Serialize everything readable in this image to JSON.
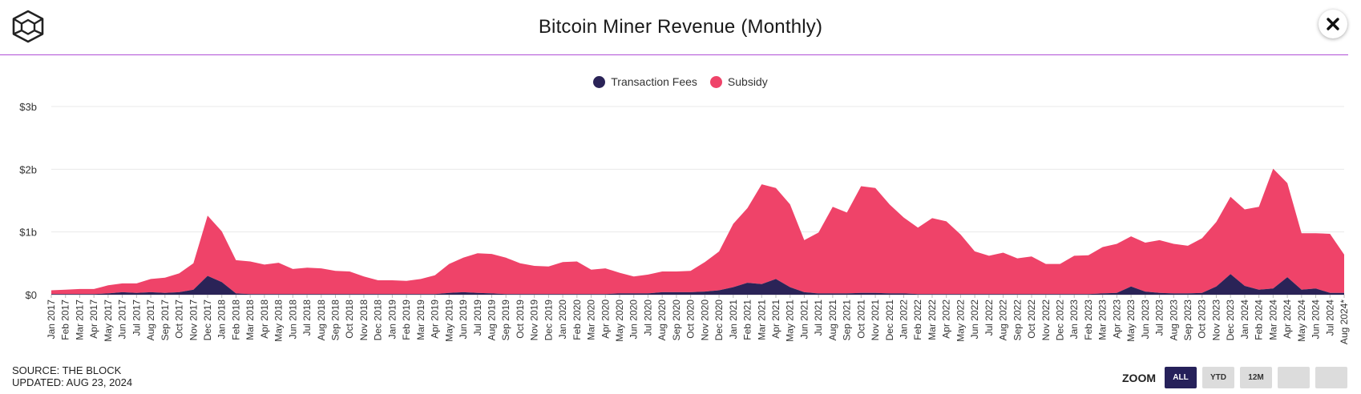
{
  "header": {
    "title": "Bitcoin Miner Revenue (Monthly)"
  },
  "icons": {
    "logo": "the-block-cube-logo",
    "close": "close-x-icon"
  },
  "colors": {
    "fees": "#2a2357",
    "subsidy": "#ef4369",
    "divider": "#b04fd6",
    "active_zoom": "#26215a"
  },
  "legend": {
    "fees_label": "Transaction Fees",
    "subsidy_label": "Subsidy"
  },
  "source": {
    "line1": "SOURCE: THE BLOCK",
    "line2": "UPDATED: AUG 23, 2024"
  },
  "zoom": {
    "label": "ZOOM",
    "buttons": [
      {
        "label": "ALL",
        "active": true
      },
      {
        "label": "YTD",
        "active": false
      },
      {
        "label": "12M",
        "active": false
      },
      {
        "label": "",
        "active": false
      },
      {
        "label": "",
        "active": false
      }
    ]
  },
  "chart_data": {
    "type": "area",
    "stacked": true,
    "yticks": [
      "$0",
      "$1b",
      "$2b",
      "$3b"
    ],
    "ylim": [
      0,
      3
    ],
    "y_unit": "billion USD",
    "grid": true,
    "legend_position": "top-center",
    "categories": [
      "Jan 2017",
      "Feb 2017",
      "Mar 2017",
      "Apr 2017",
      "May 2017",
      "Jun 2017",
      "Jul 2017",
      "Aug 2017",
      "Sep 2017",
      "Oct 2017",
      "Nov 2017",
      "Dec 2017",
      "Jan 2018",
      "Feb 2018",
      "Mar 2018",
      "Apr 2018",
      "May 2018",
      "Jun 2018",
      "Jul 2018",
      "Aug 2018",
      "Sep 2018",
      "Oct 2018",
      "Nov 2018",
      "Dec 2018",
      "Jan 2019",
      "Feb 2019",
      "Mar 2019",
      "Apr 2019",
      "May 2019",
      "Jun 2019",
      "Jul 2019",
      "Aug 2019",
      "Sep 2019",
      "Oct 2019",
      "Nov 2019",
      "Dec 2019",
      "Jan 2020",
      "Feb 2020",
      "Mar 2020",
      "Apr 2020",
      "May 2020",
      "Jun 2020",
      "Jul 2020",
      "Aug 2020",
      "Sep 2020",
      "Oct 2020",
      "Nov 2020",
      "Dec 2020",
      "Jan 2021",
      "Feb 2021",
      "Mar 2021",
      "Apr 2021",
      "May 2021",
      "Jun 2021",
      "Jul 2021",
      "Aug 2021",
      "Sep 2021",
      "Oct 2021",
      "Nov 2021",
      "Dec 2021",
      "Jan 2022",
      "Feb 2022",
      "Mar 2022",
      "Apr 2022",
      "May 2022",
      "Jun 2022",
      "Jul 2022",
      "Aug 2022",
      "Sep 2022",
      "Oct 2022",
      "Nov 2022",
      "Dec 2022",
      "Jan 2023",
      "Feb 2023",
      "Mar 2023",
      "Apr 2023",
      "May 2023",
      "Jun 2023",
      "Jul 2023",
      "Aug 2023",
      "Sep 2023",
      "Oct 2023",
      "Nov 2023",
      "Dec 2023",
      "Jan 2024",
      "Feb 2024",
      "Mar 2024",
      "Apr 2024",
      "May 2024",
      "Jun 2024",
      "Jul 2024",
      "Aug 2024*"
    ],
    "series": [
      {
        "name": "Transaction Fees",
        "values": [
          0.01,
          0.01,
          0.01,
          0.01,
          0.02,
          0.04,
          0.03,
          0.04,
          0.03,
          0.04,
          0.08,
          0.3,
          0.2,
          0.02,
          0.01,
          0.01,
          0.01,
          0.01,
          0.01,
          0.01,
          0.01,
          0.01,
          0.01,
          0.01,
          0.01,
          0.01,
          0.01,
          0.01,
          0.03,
          0.04,
          0.03,
          0.02,
          0.01,
          0.01,
          0.01,
          0.01,
          0.01,
          0.01,
          0.01,
          0.01,
          0.02,
          0.02,
          0.02,
          0.04,
          0.04,
          0.04,
          0.05,
          0.07,
          0.12,
          0.19,
          0.17,
          0.25,
          0.12,
          0.04,
          0.02,
          0.02,
          0.02,
          0.03,
          0.03,
          0.02,
          0.02,
          0.01,
          0.01,
          0.01,
          0.01,
          0.01,
          0.01,
          0.01,
          0.01,
          0.01,
          0.01,
          0.01,
          0.01,
          0.01,
          0.02,
          0.03,
          0.13,
          0.05,
          0.03,
          0.02,
          0.02,
          0.03,
          0.13,
          0.33,
          0.14,
          0.08,
          0.1,
          0.28,
          0.08,
          0.1,
          0.03,
          0.03
        ]
      },
      {
        "name": "Subsidy",
        "values": [
          0.06,
          0.07,
          0.08,
          0.08,
          0.13,
          0.14,
          0.15,
          0.21,
          0.24,
          0.3,
          0.42,
          0.96,
          0.81,
          0.53,
          0.52,
          0.47,
          0.5,
          0.4,
          0.42,
          0.41,
          0.37,
          0.36,
          0.28,
          0.22,
          0.22,
          0.21,
          0.24,
          0.3,
          0.46,
          0.55,
          0.63,
          0.63,
          0.58,
          0.49,
          0.45,
          0.44,
          0.51,
          0.52,
          0.39,
          0.41,
          0.33,
          0.27,
          0.3,
          0.33,
          0.33,
          0.34,
          0.47,
          0.62,
          1.01,
          1.19,
          1.59,
          1.45,
          1.32,
          0.83,
          0.97,
          1.38,
          1.29,
          1.7,
          1.67,
          1.42,
          1.21,
          1.06,
          1.21,
          1.16,
          0.95,
          0.68,
          0.61,
          0.66,
          0.57,
          0.6,
          0.48,
          0.48,
          0.61,
          0.62,
          0.74,
          0.78,
          0.8,
          0.78,
          0.84,
          0.79,
          0.76,
          0.87,
          1.03,
          1.23,
          1.22,
          1.32,
          1.91,
          1.5,
          0.9,
          0.88,
          0.94,
          0.61
        ]
      }
    ]
  }
}
